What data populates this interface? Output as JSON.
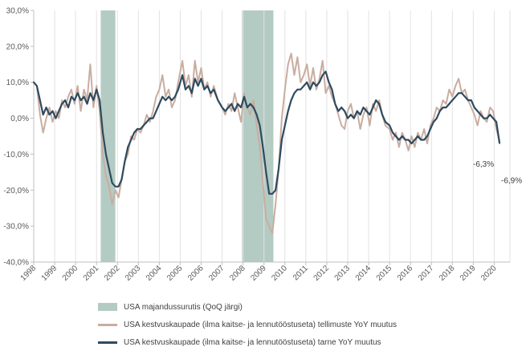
{
  "chart_data": {
    "type": "line",
    "yticks": [
      "30,0%",
      "20,0%",
      "10,0%",
      "0,0%",
      "-10,0%",
      "-20,0%",
      "-30,0%",
      "-40,0%"
    ],
    "ylim": [
      -40,
      30
    ],
    "xlim": [
      1998,
      2020.75
    ],
    "xticks": [
      "1998",
      "1999",
      "2000",
      "2001",
      "2002",
      "2003",
      "2004",
      "2005",
      "2006",
      "2007",
      "2008",
      "2009",
      "2010",
      "2011",
      "2012",
      "2013",
      "2014",
      "2015",
      "2016",
      "2017",
      "2018",
      "2019",
      "2020"
    ],
    "grid": "vertical",
    "recessions": [
      {
        "start": 2001.2,
        "end": 2001.9
      },
      {
        "start": 2007.95,
        "end": 2009.45
      }
    ],
    "annotations": [
      {
        "text": "-6,3%",
        "x": 2020.0,
        "y": -6.3
      },
      {
        "text": "-6,9%",
        "x": 2020.3,
        "y": -6.9
      }
    ],
    "legend": {
      "placement": "bottom",
      "entries": [
        {
          "label": "USA majandussurutis (QoQ järgi)",
          "kind": "area",
          "color": "#b4cbc4"
        },
        {
          "label": "USA kestvuskaupade (ilma kaitse- ja lennutööstuseta) tellimuste YoY muutus",
          "kind": "line",
          "color": "#c9ada0"
        },
        {
          "label": "USA kestvuskaupade (ilma kaitse- ja lennutööstuseta) tarne YoY muutus",
          "kind": "line",
          "color": "#2e4a5f"
        }
      ]
    },
    "series": [
      {
        "name": "USA kestvuskaupade (ilma kaitse- ja lennutööstuseta) tellimuste YoY muutus",
        "color": "#c9ada0",
        "points": [
          [
            1998.0,
            10
          ],
          [
            1998.15,
            9
          ],
          [
            1998.3,
            1
          ],
          [
            1998.45,
            -4
          ],
          [
            1998.6,
            0
          ],
          [
            1998.75,
            3
          ],
          [
            1998.9,
            -1
          ],
          [
            1999.05,
            2
          ],
          [
            1999.2,
            0
          ],
          [
            1999.35,
            5
          ],
          [
            1999.5,
            3
          ],
          [
            1999.65,
            6
          ],
          [
            1999.8,
            8
          ],
          [
            1999.95,
            4
          ],
          [
            2000.1,
            9
          ],
          [
            2000.25,
            2
          ],
          [
            2000.4,
            8
          ],
          [
            2000.55,
            5
          ],
          [
            2000.7,
            15
          ],
          [
            2000.85,
            3
          ],
          [
            2001.0,
            9
          ],
          [
            2001.15,
            2
          ],
          [
            2001.3,
            -10
          ],
          [
            2001.45,
            -16
          ],
          [
            2001.6,
            -19
          ],
          [
            2001.75,
            -24
          ],
          [
            2001.9,
            -20
          ],
          [
            2002.05,
            -22
          ],
          [
            2002.2,
            -17
          ],
          [
            2002.35,
            -12
          ],
          [
            2002.5,
            -10
          ],
          [
            2002.65,
            -5
          ],
          [
            2002.8,
            -6
          ],
          [
            2002.95,
            -3
          ],
          [
            2003.1,
            -4
          ],
          [
            2003.25,
            -2
          ],
          [
            2003.4,
            1
          ],
          [
            2003.55,
            -1
          ],
          [
            2003.7,
            2
          ],
          [
            2003.85,
            6
          ],
          [
            2004.0,
            8
          ],
          [
            2004.15,
            12
          ],
          [
            2004.3,
            6
          ],
          [
            2004.45,
            8
          ],
          [
            2004.6,
            3
          ],
          [
            2004.75,
            5
          ],
          [
            2004.9,
            10
          ],
          [
            2005.1,
            16
          ],
          [
            2005.25,
            9
          ],
          [
            2005.4,
            12
          ],
          [
            2005.55,
            6
          ],
          [
            2005.7,
            16
          ],
          [
            2005.85,
            10
          ],
          [
            2006.0,
            14
          ],
          [
            2006.15,
            8
          ],
          [
            2006.3,
            10
          ],
          [
            2006.45,
            6
          ],
          [
            2006.6,
            9
          ],
          [
            2006.8,
            5
          ],
          [
            2007.0,
            3
          ],
          [
            2007.15,
            1
          ],
          [
            2007.3,
            4
          ],
          [
            2007.45,
            2
          ],
          [
            2007.6,
            7
          ],
          [
            2007.75,
            3
          ],
          [
            2007.9,
            -1
          ],
          [
            2008.05,
            7
          ],
          [
            2008.2,
            3
          ],
          [
            2008.35,
            1
          ],
          [
            2008.5,
            5
          ],
          [
            2008.65,
            -2
          ],
          [
            2008.8,
            -8
          ],
          [
            2008.95,
            -18
          ],
          [
            2009.1,
            -28
          ],
          [
            2009.25,
            -30
          ],
          [
            2009.4,
            -32
          ],
          [
            2009.55,
            -24
          ],
          [
            2009.7,
            -14
          ],
          [
            2009.85,
            0
          ],
          [
            2010.0,
            8
          ],
          [
            2010.15,
            15
          ],
          [
            2010.3,
            18
          ],
          [
            2010.45,
            12
          ],
          [
            2010.6,
            17
          ],
          [
            2010.75,
            10
          ],
          [
            2010.9,
            12
          ],
          [
            2011.05,
            15
          ],
          [
            2011.2,
            9
          ],
          [
            2011.35,
            14
          ],
          [
            2011.5,
            8
          ],
          [
            2011.65,
            11
          ],
          [
            2011.8,
            16
          ],
          [
            2011.95,
            7
          ],
          [
            2012.1,
            9
          ],
          [
            2012.25,
            6
          ],
          [
            2012.4,
            4
          ],
          [
            2012.55,
            1
          ],
          [
            2012.7,
            -2
          ],
          [
            2012.85,
            -3
          ],
          [
            2013.0,
            2
          ],
          [
            2013.15,
            4
          ],
          [
            2013.3,
            0
          ],
          [
            2013.45,
            2
          ],
          [
            2013.6,
            -3
          ],
          [
            2013.75,
            1
          ],
          [
            2013.9,
            3
          ],
          [
            2014.05,
            -2
          ],
          [
            2014.2,
            4
          ],
          [
            2014.35,
            2
          ],
          [
            2014.5,
            5
          ],
          [
            2014.65,
            1
          ],
          [
            2014.8,
            -2
          ],
          [
            2015.0,
            -3
          ],
          [
            2015.15,
            -6
          ],
          [
            2015.3,
            -4
          ],
          [
            2015.45,
            -8
          ],
          [
            2015.6,
            -4
          ],
          [
            2015.75,
            -6
          ],
          [
            2015.9,
            -9
          ],
          [
            2016.05,
            -5
          ],
          [
            2016.2,
            -8
          ],
          [
            2016.35,
            -4
          ],
          [
            2016.5,
            -6
          ],
          [
            2016.65,
            -3
          ],
          [
            2016.8,
            -7
          ],
          [
            2016.95,
            -2
          ],
          [
            2017.1,
            0
          ],
          [
            2017.25,
            3
          ],
          [
            2017.4,
            2
          ],
          [
            2017.55,
            5
          ],
          [
            2017.7,
            4
          ],
          [
            2017.85,
            8
          ],
          [
            2018.0,
            6
          ],
          [
            2018.15,
            9
          ],
          [
            2018.3,
            11
          ],
          [
            2018.45,
            7
          ],
          [
            2018.6,
            8
          ],
          [
            2018.75,
            5
          ],
          [
            2018.9,
            3
          ],
          [
            2019.05,
            1
          ],
          [
            2019.2,
            -2
          ],
          [
            2019.35,
            2
          ],
          [
            2019.5,
            0
          ],
          [
            2019.65,
            -1
          ],
          [
            2019.8,
            3
          ],
          [
            2019.95,
            2
          ],
          [
            2020.1,
            -3
          ],
          [
            2020.25,
            -6.3
          ]
        ]
      },
      {
        "name": "USA kestvuskaupade (ilma kaitse- ja lennutööstuseta) tarne YoY muutus",
        "color": "#2e4a5f",
        "points": [
          [
            1998.0,
            10
          ],
          [
            1998.15,
            9
          ],
          [
            1998.3,
            5
          ],
          [
            1998.45,
            1
          ],
          [
            1998.6,
            3
          ],
          [
            1998.75,
            1
          ],
          [
            1998.9,
            2
          ],
          [
            1999.05,
            0
          ],
          [
            1999.2,
            2
          ],
          [
            1999.35,
            4
          ],
          [
            1999.5,
            5
          ],
          [
            1999.65,
            3
          ],
          [
            1999.8,
            6
          ],
          [
            1999.95,
            5
          ],
          [
            2000.1,
            7
          ],
          [
            2000.25,
            5
          ],
          [
            2000.4,
            6
          ],
          [
            2000.55,
            4
          ],
          [
            2000.7,
            7
          ],
          [
            2000.85,
            5
          ],
          [
            2001.0,
            8
          ],
          [
            2001.15,
            5
          ],
          [
            2001.3,
            -4
          ],
          [
            2001.45,
            -10
          ],
          [
            2001.6,
            -14
          ],
          [
            2001.75,
            -18
          ],
          [
            2001.9,
            -19
          ],
          [
            2002.05,
            -19
          ],
          [
            2002.2,
            -17
          ],
          [
            2002.35,
            -12
          ],
          [
            2002.5,
            -8
          ],
          [
            2002.65,
            -6
          ],
          [
            2002.8,
            -4
          ],
          [
            2002.95,
            -3
          ],
          [
            2003.1,
            -3
          ],
          [
            2003.25,
            -2
          ],
          [
            2003.4,
            -1
          ],
          [
            2003.55,
            0
          ],
          [
            2003.7,
            0
          ],
          [
            2003.85,
            2
          ],
          [
            2004.0,
            4
          ],
          [
            2004.15,
            6
          ],
          [
            2004.3,
            5
          ],
          [
            2004.45,
            6
          ],
          [
            2004.6,
            5
          ],
          [
            2004.75,
            6
          ],
          [
            2004.9,
            8
          ],
          [
            2005.1,
            12
          ],
          [
            2005.25,
            8
          ],
          [
            2005.4,
            9
          ],
          [
            2005.55,
            7
          ],
          [
            2005.7,
            11
          ],
          [
            2005.85,
            9
          ],
          [
            2006.0,
            11
          ],
          [
            2006.15,
            8
          ],
          [
            2006.3,
            9
          ],
          [
            2006.45,
            7
          ],
          [
            2006.6,
            8
          ],
          [
            2006.8,
            5
          ],
          [
            2007.0,
            3
          ],
          [
            2007.15,
            2
          ],
          [
            2007.3,
            3
          ],
          [
            2007.45,
            4
          ],
          [
            2007.6,
            2
          ],
          [
            2007.75,
            4
          ],
          [
            2007.9,
            3
          ],
          [
            2008.05,
            6
          ],
          [
            2008.2,
            3
          ],
          [
            2008.35,
            4
          ],
          [
            2008.5,
            3
          ],
          [
            2008.65,
            1
          ],
          [
            2008.8,
            -2
          ],
          [
            2008.95,
            -8
          ],
          [
            2009.1,
            -15
          ],
          [
            2009.25,
            -21
          ],
          [
            2009.4,
            -21
          ],
          [
            2009.55,
            -20
          ],
          [
            2009.7,
            -14
          ],
          [
            2009.85,
            -6
          ],
          [
            2010.0,
            -2
          ],
          [
            2010.15,
            2
          ],
          [
            2010.3,
            5
          ],
          [
            2010.45,
            7
          ],
          [
            2010.6,
            8
          ],
          [
            2010.75,
            8
          ],
          [
            2010.9,
            9
          ],
          [
            2011.05,
            10
          ],
          [
            2011.2,
            8
          ],
          [
            2011.35,
            10
          ],
          [
            2011.5,
            9
          ],
          [
            2011.65,
            10
          ],
          [
            2011.8,
            12
          ],
          [
            2011.95,
            13
          ],
          [
            2012.1,
            10
          ],
          [
            2012.25,
            8
          ],
          [
            2012.4,
            4
          ],
          [
            2012.55,
            2
          ],
          [
            2012.7,
            3
          ],
          [
            2012.85,
            2
          ],
          [
            2013.0,
            0
          ],
          [
            2013.15,
            1
          ],
          [
            2013.3,
            0
          ],
          [
            2013.45,
            2
          ],
          [
            2013.6,
            1
          ],
          [
            2013.75,
            3
          ],
          [
            2013.9,
            2
          ],
          [
            2014.05,
            1
          ],
          [
            2014.2,
            3
          ],
          [
            2014.35,
            5
          ],
          [
            2014.5,
            4
          ],
          [
            2014.65,
            1
          ],
          [
            2014.8,
            -1
          ],
          [
            2015.0,
            -2
          ],
          [
            2015.15,
            -4
          ],
          [
            2015.3,
            -5
          ],
          [
            2015.45,
            -6
          ],
          [
            2015.6,
            -5
          ],
          [
            2015.75,
            -6
          ],
          [
            2015.9,
            -6
          ],
          [
            2016.05,
            -7
          ],
          [
            2016.2,
            -6
          ],
          [
            2016.35,
            -5
          ],
          [
            2016.5,
            -6
          ],
          [
            2016.65,
            -6
          ],
          [
            2016.8,
            -5
          ],
          [
            2016.95,
            -3
          ],
          [
            2017.1,
            -1
          ],
          [
            2017.25,
            0
          ],
          [
            2017.4,
            2
          ],
          [
            2017.55,
            3
          ],
          [
            2017.7,
            3
          ],
          [
            2017.85,
            4
          ],
          [
            2018.0,
            5
          ],
          [
            2018.15,
            6
          ],
          [
            2018.3,
            7
          ],
          [
            2018.45,
            7
          ],
          [
            2018.6,
            6
          ],
          [
            2018.75,
            5
          ],
          [
            2018.9,
            5
          ],
          [
            2019.05,
            3
          ],
          [
            2019.2,
            2
          ],
          [
            2019.35,
            1
          ],
          [
            2019.5,
            0
          ],
          [
            2019.65,
            0
          ],
          [
            2019.8,
            1
          ],
          [
            2019.95,
            0
          ],
          [
            2020.1,
            -1
          ],
          [
            2020.25,
            -6.9
          ]
        ]
      }
    ]
  }
}
